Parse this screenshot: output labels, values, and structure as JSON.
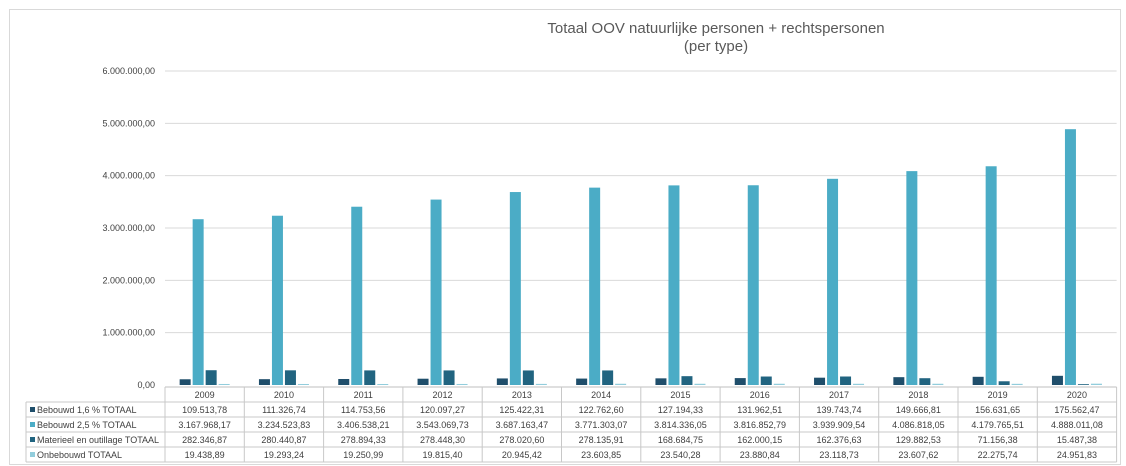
{
  "chart_data": {
    "type": "bar",
    "title": "Totaal OOV natuurlijke personen + rechtspersonen",
    "subtitle": "(per type)",
    "categories": [
      "2009",
      "2010",
      "2011",
      "2012",
      "2013",
      "2014",
      "2015",
      "2016",
      "2017",
      "2018",
      "2019",
      "2020"
    ],
    "ylim": [
      0,
      6000000
    ],
    "yticks": [
      "0,00",
      "1.000.000,00",
      "2.000.000,00",
      "3.000.000,00",
      "4.000.000,00",
      "5.000.000,00",
      "6.000.000,00"
    ],
    "grid": true,
    "legend": "data-table",
    "series": [
      {
        "name": "Bebouwd 1,6 % TOTAAL",
        "color": "#1f4e6b",
        "values": [
          109513.78,
          111326.74,
          114753.56,
          120097.27,
          125422.31,
          122762.6,
          127194.33,
          131962.51,
          139743.74,
          149666.81,
          156631.65,
          175562.47
        ],
        "labels": [
          "109.513,78",
          "111.326,74",
          "114.753,56",
          "120.097,27",
          "125.422,31",
          "122.762,60",
          "127.194,33",
          "131.962,51",
          "139.743,74",
          "149.666,81",
          "156.631,65",
          "175.562,47"
        ]
      },
      {
        "name": "Bebouwd 2,5 % TOTAAL",
        "color": "#4bacc6",
        "values": [
          3167968.17,
          3234523.83,
          3406538.21,
          3543069.73,
          3687163.47,
          3771303.07,
          3814336.05,
          3816852.79,
          3939909.54,
          4086818.05,
          4179765.51,
          4888011.08
        ],
        "labels": [
          "3.167.968,17",
          "3.234.523,83",
          "3.406.538,21",
          "3.543.069,73",
          "3.687.163,47",
          "3.771.303,07",
          "3.814.336,05",
          "3.816.852,79",
          "3.939.909,54",
          "4.086.818,05",
          "4.179.765,51",
          "4.888.011,08"
        ]
      },
      {
        "name": "Materieel en outillage TOTAAL",
        "color": "#216480",
        "values": [
          282346.87,
          280440.87,
          278894.33,
          278448.3,
          278020.6,
          278135.91,
          168684.75,
          162000.15,
          162376.63,
          129882.53,
          71156.38,
          15487.38
        ],
        "labels": [
          "282.346,87",
          "280.440,87",
          "278.894,33",
          "278.448,30",
          "278.020,60",
          "278.135,91",
          "168.684,75",
          "162.000,15",
          "162.376,63",
          "129.882,53",
          "71.156,38",
          "15.487,38"
        ]
      },
      {
        "name": "Onbebouwd TOTAAL",
        "color": "#92cddc",
        "values": [
          19438.89,
          19293.24,
          19250.99,
          19815.4,
          20945.42,
          23603.85,
          23540.28,
          23880.84,
          23118.73,
          23607.62,
          22275.74,
          24951.83
        ],
        "labels": [
          "19.438,89",
          "19.293,24",
          "19.250,99",
          "19.815,40",
          "20.945,42",
          "23.603,85",
          "23.540,28",
          "23.880,84",
          "23.118,73",
          "23.607,62",
          "22.275,74",
          "24.951,83"
        ]
      }
    ]
  }
}
